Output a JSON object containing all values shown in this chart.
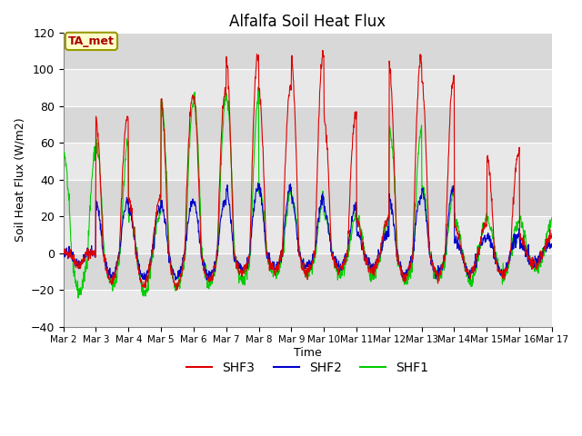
{
  "title": "Alfalfa Soil Heat Flux",
  "ylabel": "Soil Heat Flux (W/m2)",
  "xlabel": "Time",
  "ylim": [
    -40,
    120
  ],
  "fig_bg_color": "#ffffff",
  "plot_bg_color": "#e8e8e8",
  "line_colors": {
    "SHF1": "#dd0000",
    "SHF2": "#0000cc",
    "SHF3": "#00cc00"
  },
  "annotation_text": "TA_met",
  "annotation_text_color": "#aa0000",
  "annotation_bg": "#ffffcc",
  "annotation_border": "#999900",
  "legend_labels": [
    "SHF1",
    "SHF2",
    "SHF3"
  ],
  "x_tick_labels": [
    "Mar 2",
    "Mar 3",
    "Mar 4",
    "Mar 5",
    "Mar 6",
    "Mar 7",
    "Mar 8",
    "Mar 9",
    "Mar 10",
    "Mar 11",
    "Mar 12",
    "Mar 13",
    "Mar 14",
    "Mar 15",
    "Mar 16",
    "Mar 17"
  ],
  "num_days": 15,
  "points_per_day": 96,
  "seed": 42,
  "band_colors": [
    "#e8e8e8",
    "#d8d8d8"
  ]
}
